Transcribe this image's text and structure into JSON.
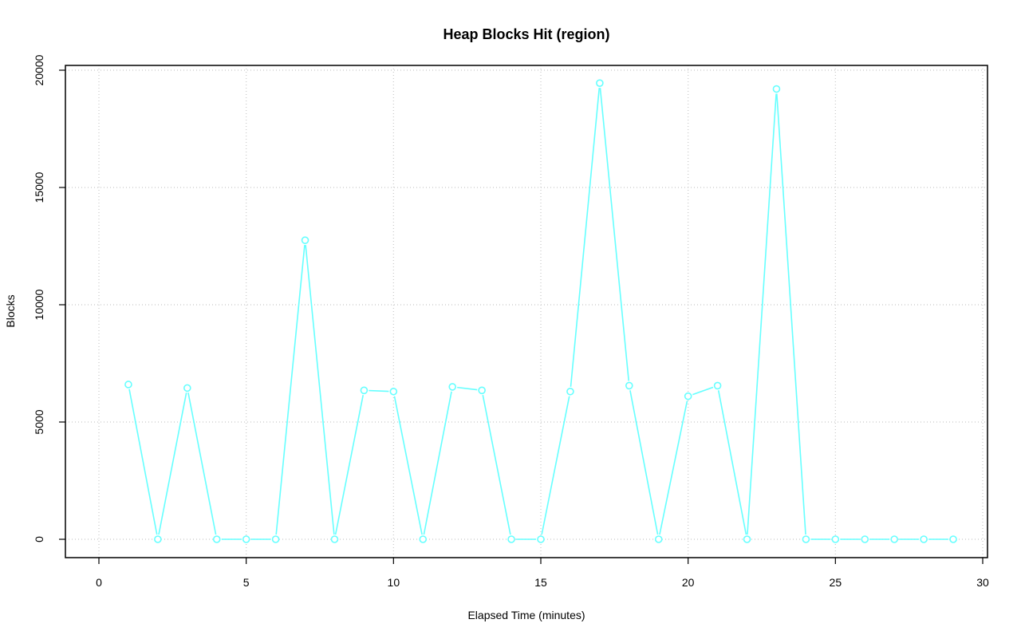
{
  "chart_data": {
    "type": "line",
    "title": "Heap Blocks Hit (region)",
    "xlabel": "Elapsed Time (minutes)",
    "ylabel": "Blocks",
    "xlim": [
      0,
      30
    ],
    "ylim": [
      0,
      20000
    ],
    "xticks": [
      0,
      5,
      10,
      15,
      20,
      25,
      30
    ],
    "yticks": [
      0,
      5000,
      10000,
      15000,
      20000
    ],
    "grid": true,
    "color": "#66ffff",
    "x": [
      1,
      2,
      3,
      4,
      5,
      6,
      7,
      8,
      9,
      10,
      11,
      12,
      13,
      14,
      15,
      16,
      17,
      18,
      19,
      20,
      21,
      22,
      23,
      24,
      25,
      26,
      27,
      28,
      29
    ],
    "y": [
      6600,
      0,
      6450,
      0,
      0,
      0,
      12750,
      0,
      6350,
      6300,
      0,
      6500,
      6350,
      0,
      0,
      6300,
      19450,
      6550,
      0,
      6100,
      6550,
      0,
      19200,
      0,
      0,
      0,
      0,
      0,
      0
    ]
  }
}
